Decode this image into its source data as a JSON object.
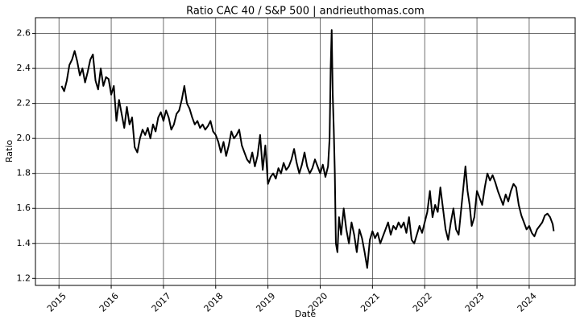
{
  "chart_data": {
    "type": "line",
    "title": "Ratio CAC 40 / S&P 500 | andrieuthomas.com",
    "xlabel": "Date",
    "ylabel": "Ratio",
    "color": "#000000",
    "grid": true,
    "xlim": [
      2014.55,
      2024.88
    ],
    "ylim": [
      1.16,
      2.69
    ],
    "xticks": [
      2015,
      2016,
      2017,
      2018,
      2019,
      2020,
      2021,
      2022,
      2023,
      2024
    ],
    "yticks": [
      1.2,
      1.4,
      1.6,
      1.8,
      {
        "value": 2,
        "label": "2.0"
      },
      2.2,
      2.4,
      2.6
    ],
    "x": [
      2015.05,
      2015.1,
      2015.15,
      2015.2,
      2015.25,
      2015.3,
      2015.35,
      2015.4,
      2015.45,
      2015.5,
      2015.55,
      2015.6,
      2015.65,
      2015.7,
      2015.75,
      2015.8,
      2015.85,
      2015.9,
      2015.95,
      2016.0,
      2016.05,
      2016.1,
      2016.15,
      2016.2,
      2016.25,
      2016.3,
      2016.35,
      2016.4,
      2016.45,
      2016.5,
      2016.55,
      2016.6,
      2016.65,
      2016.7,
      2016.75,
      2016.8,
      2016.85,
      2016.9,
      2016.95,
      2017.0,
      2017.05,
      2017.1,
      2017.15,
      2017.2,
      2017.25,
      2017.3,
      2017.35,
      2017.4,
      2017.45,
      2017.5,
      2017.55,
      2017.6,
      2017.65,
      2017.7,
      2017.75,
      2017.8,
      2017.85,
      2017.9,
      2017.95,
      2018.0,
      2018.05,
      2018.1,
      2018.15,
      2018.2,
      2018.25,
      2018.3,
      2018.35,
      2018.4,
      2018.45,
      2018.5,
      2018.55,
      2018.6,
      2018.65,
      2018.7,
      2018.75,
      2018.8,
      2018.85,
      2018.9,
      2018.95,
      2019.0,
      2019.05,
      2019.1,
      2019.15,
      2019.2,
      2019.25,
      2019.3,
      2019.35,
      2019.4,
      2019.45,
      2019.5,
      2019.55,
      2019.6,
      2019.65,
      2019.7,
      2019.75,
      2019.8,
      2019.85,
      2019.9,
      2019.95,
      2020.0,
      2020.05,
      2020.1,
      2020.15,
      2020.18,
      2020.2,
      2020.22,
      2020.24,
      2020.26,
      2020.28,
      2020.3,
      2020.33,
      2020.36,
      2020.4,
      2020.45,
      2020.5,
      2020.55,
      2020.6,
      2020.65,
      2020.7,
      2020.75,
      2020.8,
      2020.85,
      2020.9,
      2020.95,
      2021.0,
      2021.05,
      2021.1,
      2021.15,
      2021.2,
      2021.25,
      2021.3,
      2021.35,
      2021.4,
      2021.45,
      2021.5,
      2021.55,
      2021.6,
      2021.65,
      2021.7,
      2021.75,
      2021.8,
      2021.85,
      2021.9,
      2021.95,
      2022.0,
      2022.05,
      2022.1,
      2022.15,
      2022.2,
      2022.25,
      2022.3,
      2022.35,
      2022.4,
      2022.45,
      2022.5,
      2022.55,
      2022.6,
      2022.65,
      2022.7,
      2022.75,
      2022.78,
      2022.82,
      2022.86,
      2022.9,
      2022.95,
      2023.0,
      2023.05,
      2023.1,
      2023.15,
      2023.2,
      2023.25,
      2023.3,
      2023.35,
      2023.4,
      2023.45,
      2023.5,
      2023.55,
      2023.6,
      2023.65,
      2023.7,
      2023.75,
      2023.8,
      2023.85,
      2023.9,
      2023.95,
      2024.0,
      2024.05,
      2024.1,
      2024.15,
      2024.2,
      2024.25,
      2024.3,
      2024.35,
      2024.4,
      2024.45,
      2024.47
    ],
    "values": [
      2.3,
      2.27,
      2.33,
      2.42,
      2.45,
      2.5,
      2.44,
      2.36,
      2.4,
      2.32,
      2.38,
      2.45,
      2.48,
      2.33,
      2.28,
      2.4,
      2.3,
      2.35,
      2.34,
      2.25,
      2.3,
      2.1,
      2.22,
      2.14,
      2.06,
      2.18,
      2.08,
      2.12,
      1.95,
      1.92,
      2.0,
      2.05,
      2.02,
      2.06,
      2.0,
      2.08,
      2.04,
      2.12,
      2.15,
      2.1,
      2.16,
      2.12,
      2.05,
      2.08,
      2.14,
      2.16,
      2.22,
      2.3,
      2.2,
      2.17,
      2.12,
      2.08,
      2.1,
      2.06,
      2.08,
      2.05,
      2.07,
      2.1,
      2.04,
      2.02,
      1.98,
      1.92,
      1.98,
      1.9,
      1.96,
      2.04,
      2.0,
      2.02,
      2.05,
      1.96,
      1.92,
      1.88,
      1.86,
      1.92,
      1.84,
      1.9,
      2.02,
      1.82,
      1.96,
      1.74,
      1.78,
      1.8,
      1.77,
      1.83,
      1.8,
      1.86,
      1.82,
      1.84,
      1.88,
      1.94,
      1.86,
      1.8,
      1.85,
      1.92,
      1.84,
      1.8,
      1.83,
      1.88,
      1.84,
      1.8,
      1.85,
      1.78,
      1.84,
      2.0,
      2.4,
      2.62,
      2.25,
      2.05,
      1.8,
      1.4,
      1.35,
      1.55,
      1.45,
      1.6,
      1.48,
      1.4,
      1.52,
      1.45,
      1.35,
      1.48,
      1.43,
      1.35,
      1.26,
      1.42,
      1.47,
      1.43,
      1.46,
      1.4,
      1.44,
      1.48,
      1.52,
      1.45,
      1.5,
      1.48,
      1.52,
      1.49,
      1.52,
      1.46,
      1.55,
      1.42,
      1.4,
      1.45,
      1.5,
      1.46,
      1.52,
      1.58,
      1.7,
      1.55,
      1.62,
      1.58,
      1.72,
      1.6,
      1.48,
      1.42,
      1.52,
      1.6,
      1.48,
      1.45,
      1.6,
      1.75,
      1.84,
      1.7,
      1.62,
      1.5,
      1.55,
      1.7,
      1.66,
      1.62,
      1.72,
      1.8,
      1.76,
      1.79,
      1.75,
      1.7,
      1.66,
      1.62,
      1.68,
      1.64,
      1.7,
      1.74,
      1.72,
      1.62,
      1.56,
      1.52,
      1.48,
      1.5,
      1.46,
      1.44,
      1.48,
      1.5,
      1.52,
      1.56,
      1.57,
      1.55,
      1.51,
      1.47
    ]
  }
}
